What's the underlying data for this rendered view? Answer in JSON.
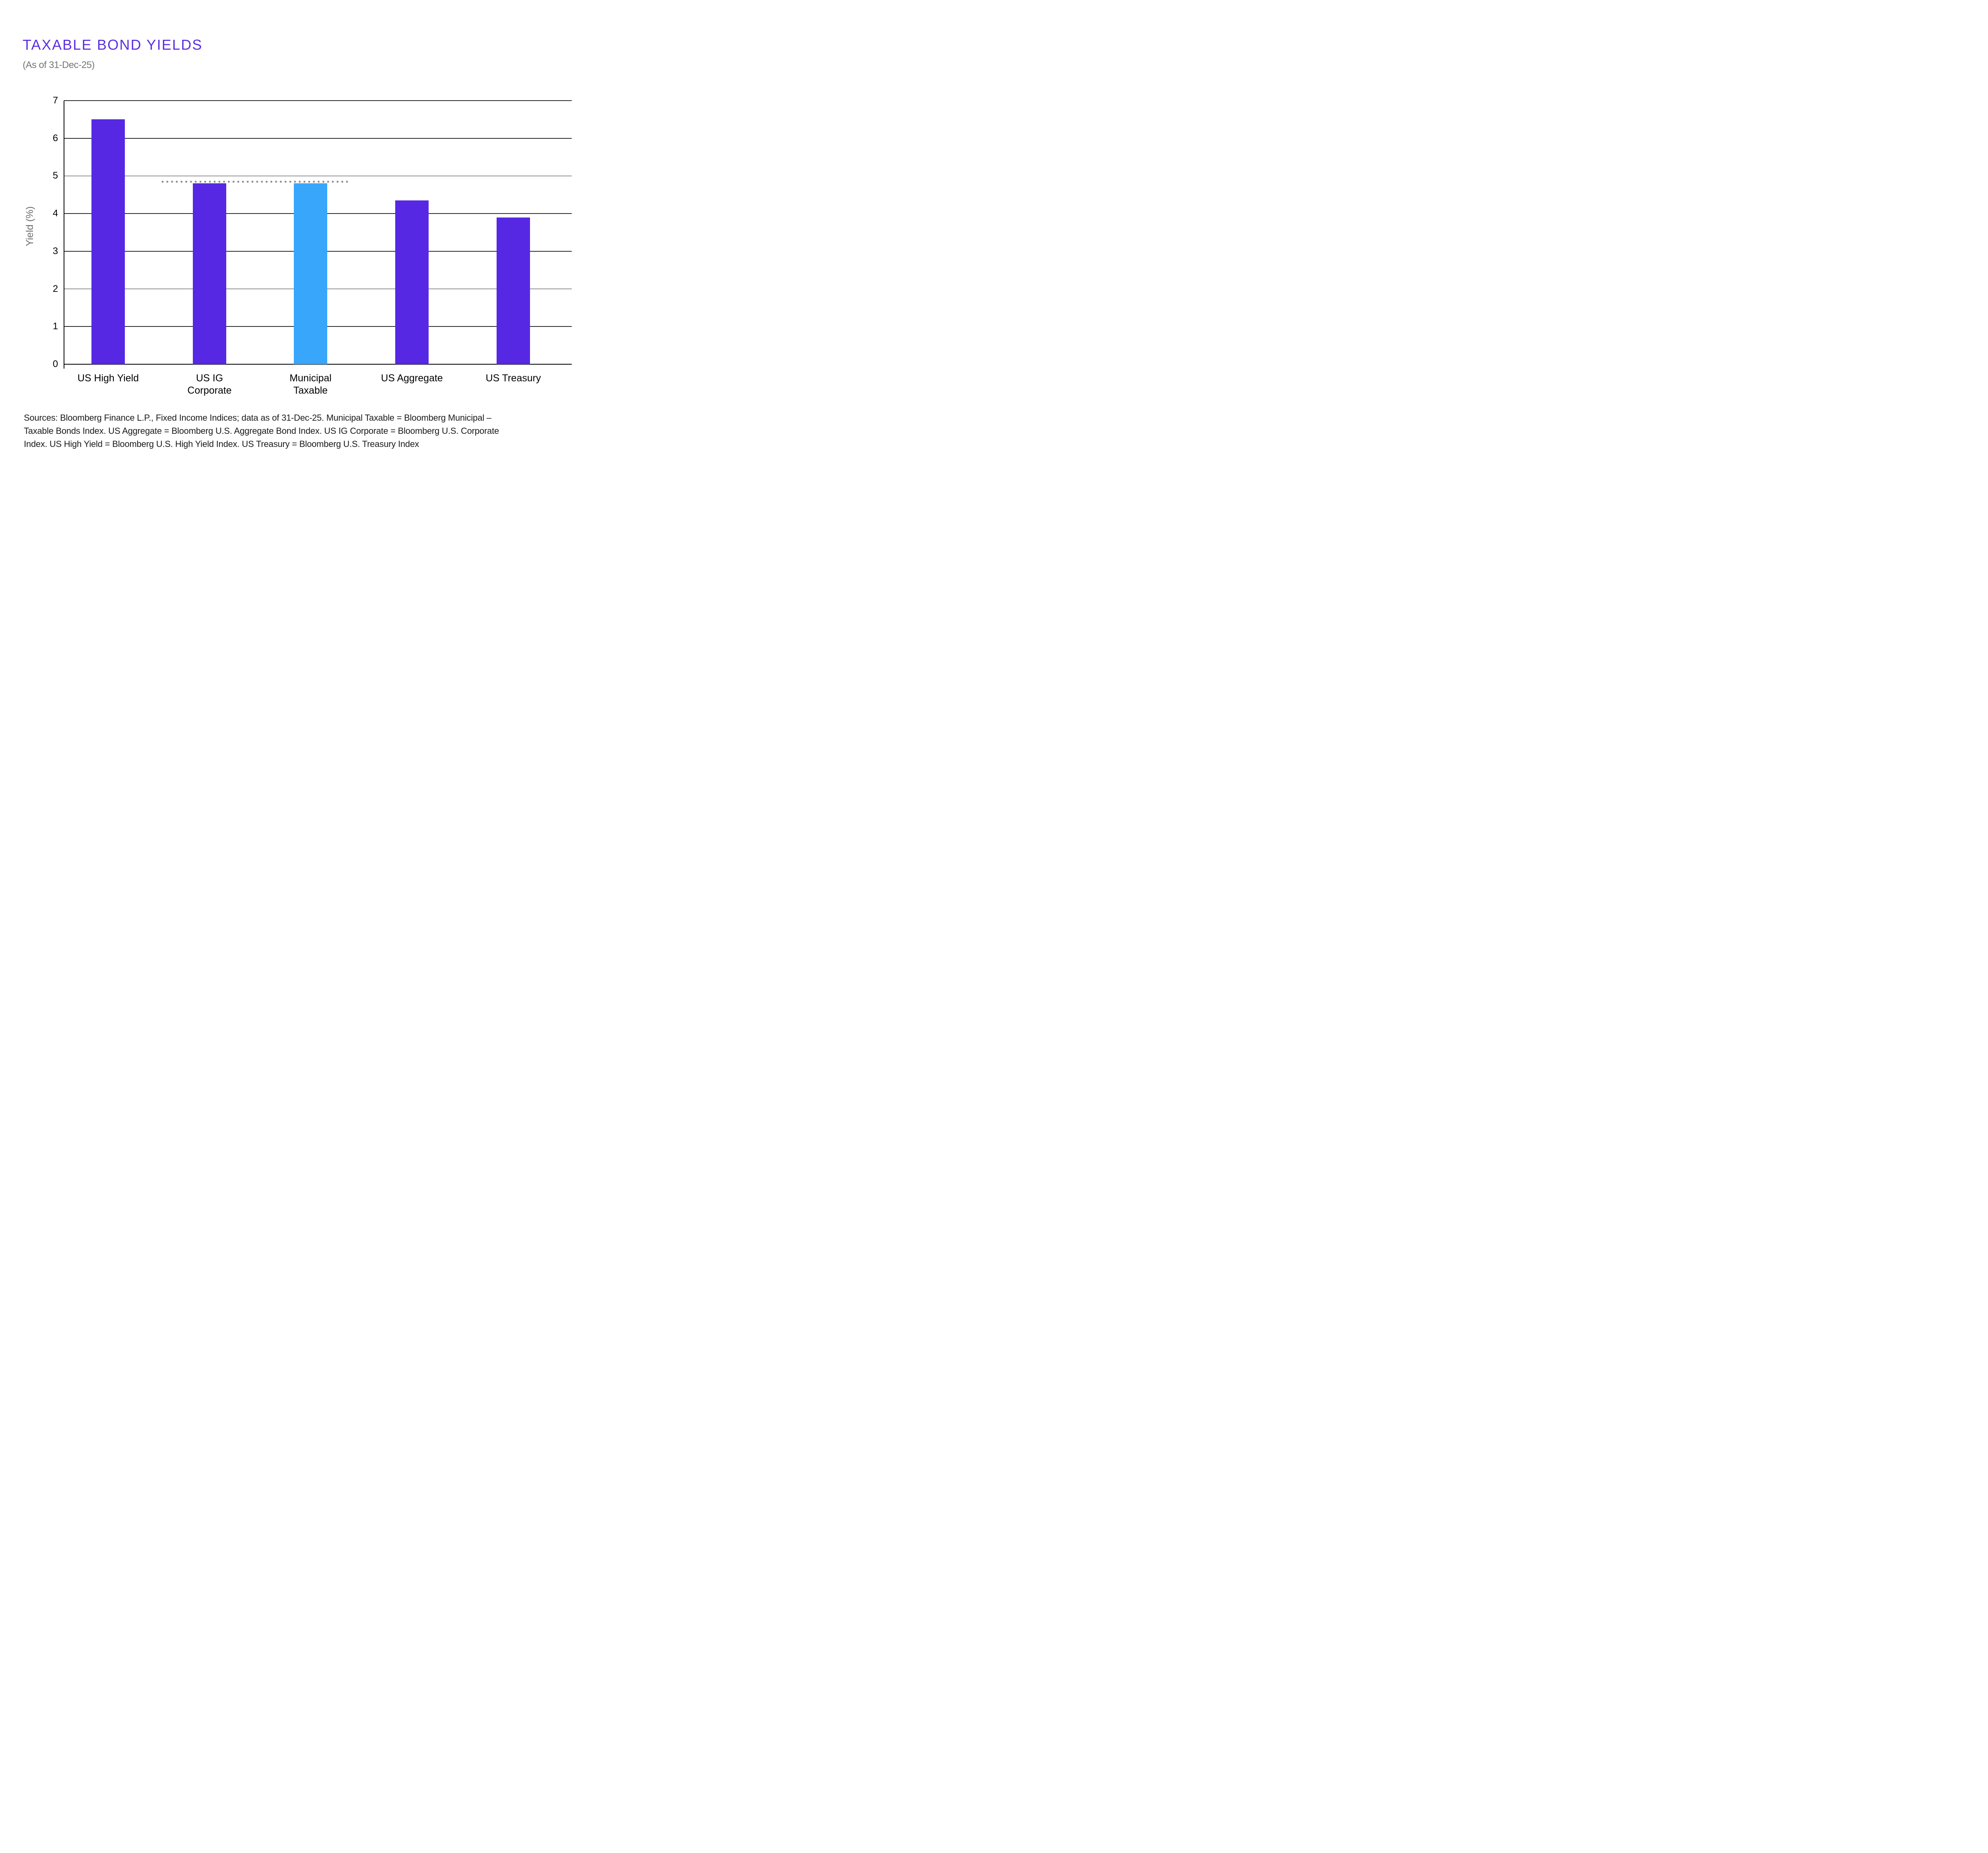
{
  "header": {
    "title": "TAXABLE BOND YIELDS",
    "subtitle": "(As of 31-Dec-25)"
  },
  "chart_data": {
    "type": "bar",
    "title": "TAXABLE BOND YIELDS",
    "subtitle": "(As of 31-Dec-25)",
    "categories": [
      "US High Yield",
      "US IG Corporate",
      "Municipal Taxable",
      "US Aggregate",
      "US Treasury"
    ],
    "category_label_lines": [
      [
        "US High Yield"
      ],
      [
        "US IG",
        "Corporate"
      ],
      [
        "Municipal",
        "Taxable"
      ],
      [
        "US Aggregate"
      ],
      [
        "US Treasury"
      ]
    ],
    "values": [
      6.5,
      4.8,
      4.8,
      4.35,
      3.9
    ],
    "bar_colors": [
      "#5628E4",
      "#5628E4",
      "#38A6FB",
      "#5628E4",
      "#5628E4"
    ],
    "xlabel": "",
    "ylabel": "Yield (%)",
    "ylim": [
      0,
      7
    ],
    "yticks": [
      0,
      1,
      2,
      3,
      4,
      5,
      6,
      7
    ],
    "grid": true,
    "legend": false,
    "annotation": {
      "type": "dotted-threshold-line",
      "value": 4.8,
      "from_category": "US IG Corporate",
      "to_category": "Municipal Taxable",
      "color": "#8C8C8C"
    }
  },
  "colors": {
    "title_purple": "#5B2EE1",
    "bar_purple": "#5628E4",
    "bar_highlight_blue": "#38A6FB",
    "subtitle_gray": "#757575",
    "axis_title_gray": "#6E6E6E",
    "dotted_line_gray": "#8C8C8C",
    "axis_black": "#000000",
    "background": "#FFFFFF"
  },
  "footer": {
    "lines": [
      "Sources: Bloomberg Finance L.P., Fixed Income Indices; data as of 31-Dec-25. Municipal Taxable = Bloomberg Municipal –",
      "Taxable Bonds Index. US Aggregate = Bloomberg U.S. Aggregate Bond Index. US IG Corporate = Bloomberg U.S. Corporate",
      "Index. US High Yield = Bloomberg U.S. High Yield Index. US Treasury = Bloomberg U.S. Treasury Index"
    ]
  }
}
